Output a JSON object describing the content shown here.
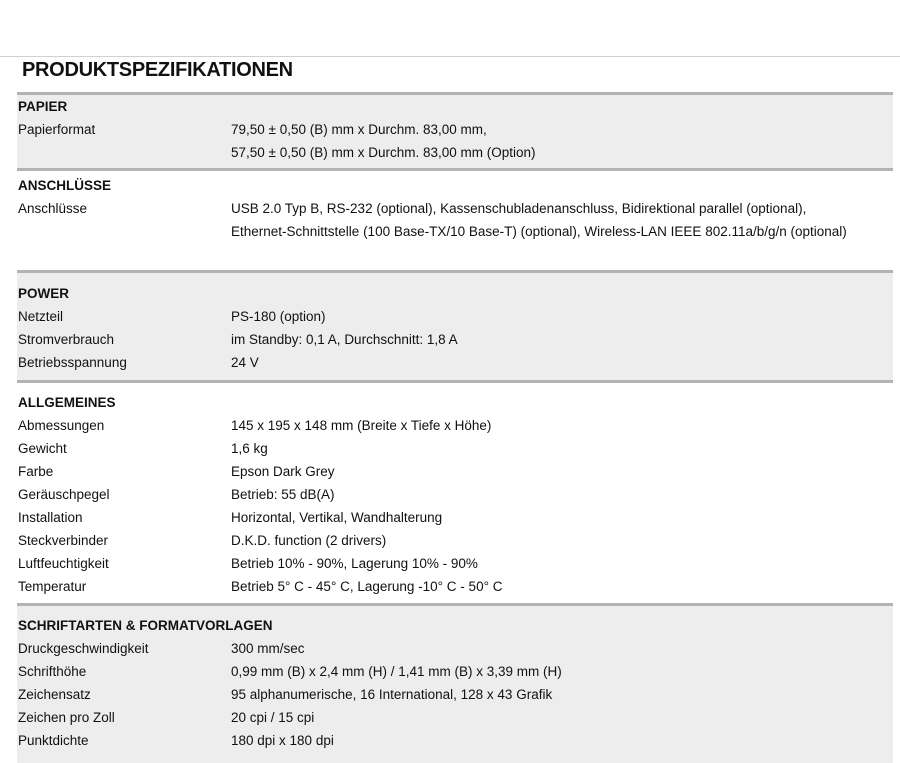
{
  "title": "PRODUKTSPEZIFIKATIONEN",
  "sections": [
    {
      "heading": "PAPIER",
      "rows": [
        {
          "label": "Papierformat",
          "value": "79,50 ± 0,50 (B) mm x Durchm. 83,00 mm,",
          "value2": "57,50 ± 0,50 (B) mm x Durchm. 83,00 mm (Option)"
        }
      ]
    },
    {
      "heading": "ANSCHLÜSSE",
      "rows": [
        {
          "label": "Anschlüsse",
          "value": "USB 2.0 Typ B, RS-232 (optional), Kassenschubladenanschluss, Bidirektional parallel (optional), Ethernet-Schnittstelle (100 Base-TX/10 Base-T) (optional), Wireless-LAN IEEE 802.11a/b/g/n (optional)"
        }
      ]
    },
    {
      "heading": "POWER",
      "rows": [
        {
          "label": "Netzteil",
          "value": "PS-180 (option)"
        },
        {
          "label": "Stromverbrauch",
          "value": "im Standby: 0,1 A, Durchschnitt: 1,8 A"
        },
        {
          "label": "Betriebsspannung",
          "value": "24 V"
        }
      ]
    },
    {
      "heading": "ALLGEMEINES",
      "rows": [
        {
          "label": "Abmessungen",
          "value": "145 x 195 x 148 mm (Breite x Tiefe x Höhe)"
        },
        {
          "label": "Gewicht",
          "value": "1,6 kg"
        },
        {
          "label": "Farbe",
          "value": "Epson Dark Grey"
        },
        {
          "label": "Geräuschpegel",
          "value": "Betrieb: 55 dB(A)"
        },
        {
          "label": "Installation",
          "value": "Horizontal, Vertikal, Wandhalterung"
        },
        {
          "label": "Steckverbinder",
          "value": "D.K.D. function (2 drivers)"
        },
        {
          "label": "Luftfeuchtigkeit",
          "value": "Betrieb 10% - 90%, Lagerung 10% - 90%"
        },
        {
          "label": "Temperatur",
          "value": "Betrieb 5° C - 45° C, Lagerung -10° C - 50° C"
        }
      ]
    },
    {
      "heading": "SCHRIFTARTEN & FORMATVORLAGEN",
      "rows": [
        {
          "label": "Druckgeschwindigkeit",
          "value": "300 mm/sec"
        },
        {
          "label": "Schrifthöhe",
          "value": "0,99 mm (B) x 2,4 mm (H) / 1,41 mm (B) x 3,39 mm (H)"
        },
        {
          "label": "Zeichensatz",
          "value": "95 alphanumerische, 16 International, 128 x 43 Grafik"
        },
        {
          "label": "Zeichen pro Zoll",
          "value": "20 cpi / 15 cpi"
        },
        {
          "label": "Punktdichte",
          "value": "180 dpi x 180 dpi"
        }
      ]
    }
  ]
}
